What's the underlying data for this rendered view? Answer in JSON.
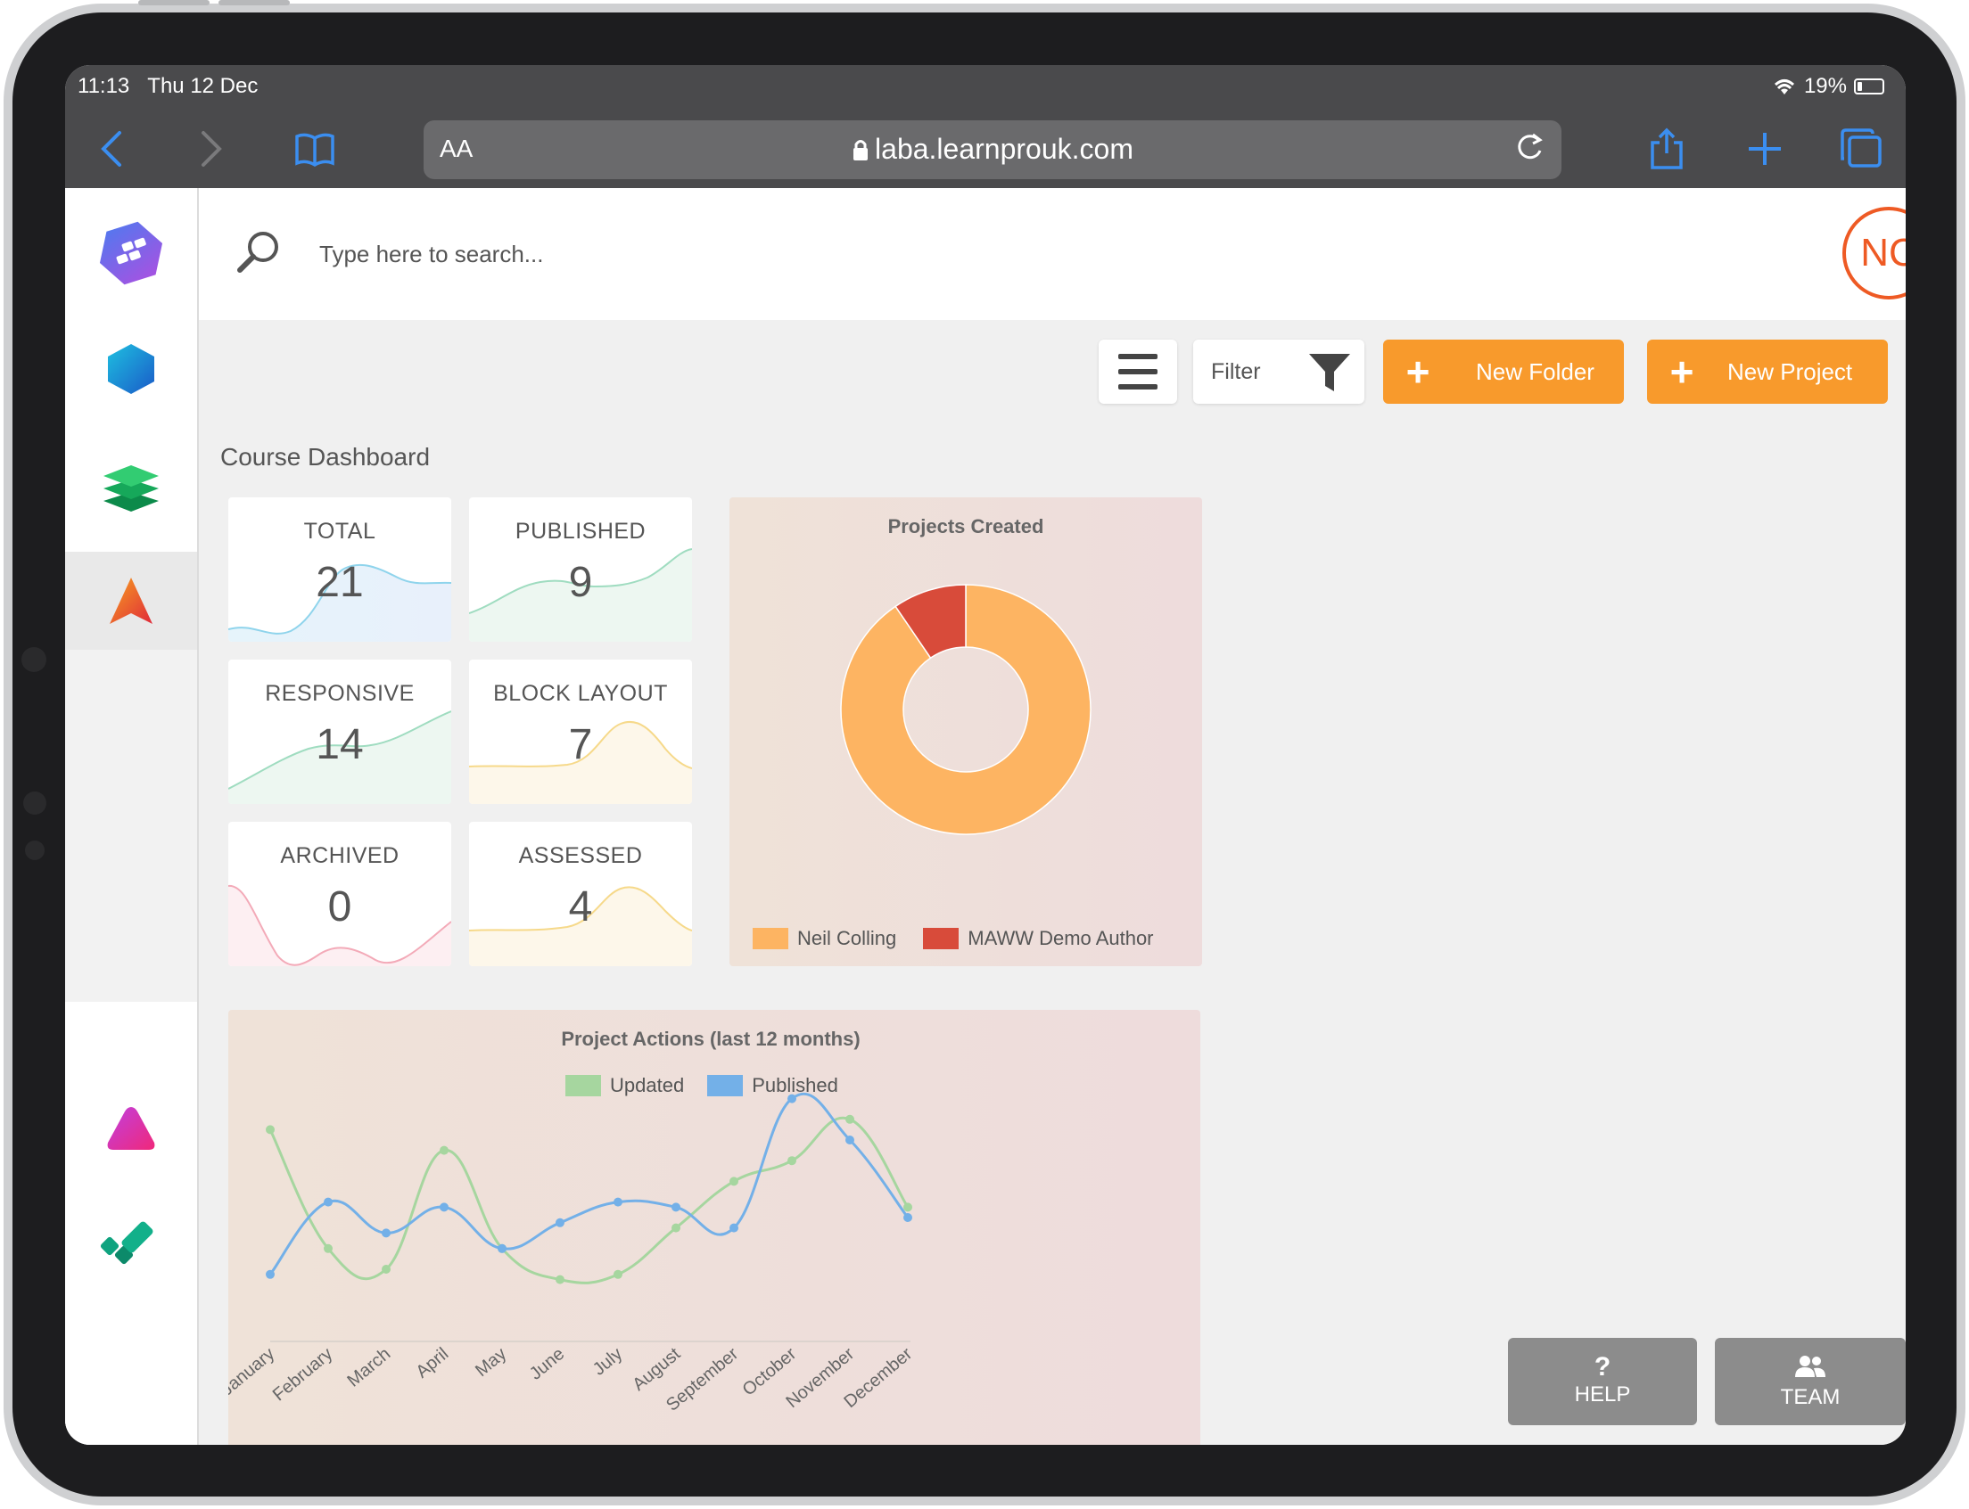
{
  "status": {
    "time": "11:13",
    "date": "Thu 12 Dec",
    "battery": "19%"
  },
  "browser": {
    "aa": "AA",
    "url": "laba.learnprouk.com"
  },
  "search": {
    "placeholder": "Type here to search..."
  },
  "user": {
    "initials": "NC"
  },
  "toolbar": {
    "filter_label": "Filter",
    "new_folder_label": "New Folder",
    "new_project_label": "New Project"
  },
  "dashboard": {
    "title": "Course Dashboard",
    "stats": [
      {
        "label": "TOTAL",
        "value": "21"
      },
      {
        "label": "PUBLISHED",
        "value": "9"
      },
      {
        "label": "RESPONSIVE",
        "value": "14"
      },
      {
        "label": "BLOCK LAYOUT",
        "value": "7"
      },
      {
        "label": "ARCHIVED",
        "value": "0"
      },
      {
        "label": "ASSESSED",
        "value": "4"
      }
    ]
  },
  "chart_data": [
    {
      "type": "pie",
      "title": "Projects Created",
      "categories": [
        "Neil Colling",
        "MAWW Demo Author"
      ],
      "values": [
        19,
        2
      ],
      "colors": [
        "#fdb462",
        "#d84b3a"
      ],
      "legend": "bottom"
    },
    {
      "type": "line",
      "title": "Project Actions (last 12 months)",
      "categories": [
        "January",
        "February",
        "March",
        "April",
        "May",
        "June",
        "July",
        "August",
        "September",
        "October",
        "November",
        "December"
      ],
      "series": [
        {
          "name": "Updated",
          "color": "#a6d69f",
          "values": [
            6.2,
            3.9,
            3.5,
            5.8,
            3.9,
            3.3,
            3.4,
            4.3,
            5.2,
            5.6,
            6.4,
            4.7
          ]
        },
        {
          "name": "Published",
          "color": "#73b0e8",
          "values": [
            3.4,
            4.8,
            4.2,
            4.7,
            3.9,
            4.4,
            4.8,
            4.7,
            4.3,
            6.8,
            6.0,
            4.5
          ]
        }
      ],
      "legend": "top",
      "grid": false
    }
  ],
  "floating": {
    "help_label": "HELP",
    "team_label": "TEAM"
  }
}
